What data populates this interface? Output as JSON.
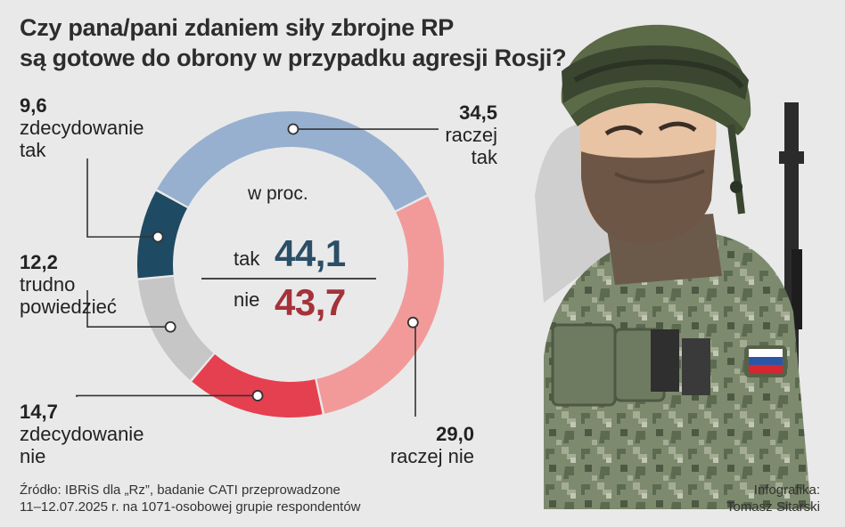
{
  "title": {
    "line1": "Czy pana/pani zdaniem siły zbrojne RP",
    "line2": "są gotowe do obrony w przypadku agresji Rosji?"
  },
  "chart_data": {
    "type": "pie",
    "unit": "w proc.",
    "slices": [
      {
        "label_lines": [
          "raczej",
          "tak"
        ],
        "value": 34.5,
        "display": "34,5",
        "color": "#97b0cf"
      },
      {
        "label_lines": [
          "raczej nie"
        ],
        "value": 29.0,
        "display": "29,0",
        "color": "#f29a9a"
      },
      {
        "label_lines": [
          "zdecydowanie",
          "nie"
        ],
        "value": 14.7,
        "display": "14,7",
        "color": "#e5404f"
      },
      {
        "label_lines": [
          "trudno",
          "powiedzieć"
        ],
        "value": 12.2,
        "display": "12,2",
        "color": "#c6c6c6"
      },
      {
        "label_lines": [
          "zdecydowanie",
          "tak"
        ],
        "value": 9.6,
        "display": "9,6",
        "color": "#1f4a63"
      }
    ],
    "summary": {
      "yes_label": "tak",
      "yes_value": "44,1",
      "yes_color": "#2a4f66",
      "no_label": "nie",
      "no_value": "43,7",
      "no_color": "#a5323a"
    }
  },
  "source": {
    "line1": "Źródło: IBRiS dla „Rz”, badanie CATI przeprowadzone",
    "line2": "11–12.07.2025 r. na 1071-osobowej grupie respondentów"
  },
  "credit": {
    "line1": "Infografika:",
    "line2": "Tomasz Sitarski"
  },
  "illustration": {
    "icon": "soldier-illustration-icon",
    "flag_colors": [
      "#ffffff",
      "#2d55a6",
      "#d7262e"
    ]
  }
}
